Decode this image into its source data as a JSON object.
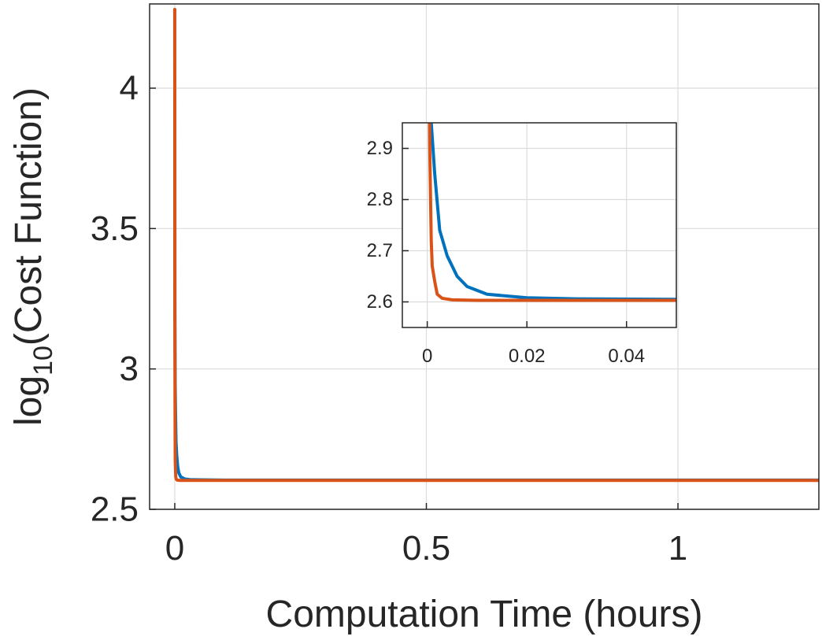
{
  "chart_data": [
    {
      "type": "line",
      "xlabel": "Computation Time (hours)",
      "ylabel_prefix": "log",
      "ylabel_sub": "10",
      "ylabel_suffix": "(Cost Function)",
      "xlim": [
        -0.05,
        1.28
      ],
      "ylim": [
        2.5,
        4.3
      ],
      "x_ticks": [
        0,
        0.5,
        1
      ],
      "x_tick_labels": [
        "0",
        "0.5",
        "1"
      ],
      "y_ticks": [
        2.5,
        3,
        3.5,
        4
      ],
      "y_tick_labels": [
        "2.5",
        "3",
        "3.5",
        "4"
      ],
      "grid": true,
      "series": [
        {
          "color": "#0072BD",
          "x": [
            0,
            0.0003,
            0.0008,
            0.0015,
            0.0025,
            0.004,
            0.006,
            0.008,
            0.012,
            0.02,
            0.03,
            0.05,
            0.1,
            0.3,
            0.6,
            1.0,
            1.28
          ],
          "y": [
            4.28,
            3.2,
            2.95,
            2.85,
            2.74,
            2.69,
            2.65,
            2.63,
            2.615,
            2.608,
            2.606,
            2.605,
            2.604,
            2.604,
            2.604,
            2.604,
            2.604
          ]
        },
        {
          "color": "#D95319",
          "x": [
            0,
            0.0002,
            0.0005,
            0.0008,
            0.001,
            0.0015,
            0.002,
            0.003,
            0.005,
            0.01,
            0.05,
            0.2,
            0.6,
            1.0,
            1.28
          ],
          "y": [
            4.28,
            3.3,
            2.9,
            2.72,
            2.67,
            2.64,
            2.615,
            2.607,
            2.604,
            2.603,
            2.603,
            2.603,
            2.603,
            2.603,
            2.603
          ]
        }
      ]
    },
    {
      "type": "line",
      "xlim": [
        -0.005,
        0.05
      ],
      "ylim": [
        2.55,
        2.95
      ],
      "x_ticks": [
        0,
        0.02,
        0.04
      ],
      "x_tick_labels": [
        "0",
        "0.02",
        "0.04"
      ],
      "y_ticks": [
        2.6,
        2.7,
        2.8,
        2.9
      ],
      "y_tick_labels": [
        "2.6",
        "2.7",
        "2.8",
        "2.9"
      ],
      "grid": true
    }
  ]
}
